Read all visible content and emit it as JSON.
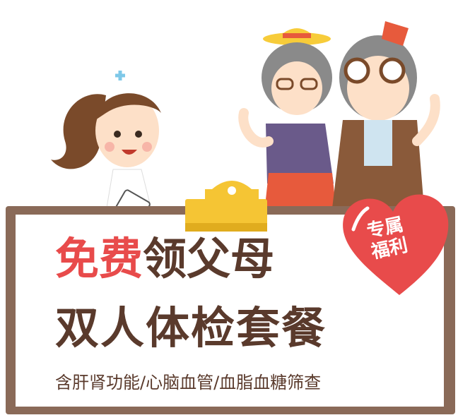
{
  "headline": {
    "highlight": "免费",
    "rest": "领父母",
    "line2": "双人体检套餐"
  },
  "subline": "含肝肾功能/心脑血管/血脂血糖筛查",
  "badge": {
    "line1": "专属",
    "line2": "福利"
  },
  "colors": {
    "accent_red": "#e84b4b",
    "text_brown": "#5a3a2c",
    "board_frame": "#8a6a58",
    "clip_yellow": "#f5c534"
  }
}
